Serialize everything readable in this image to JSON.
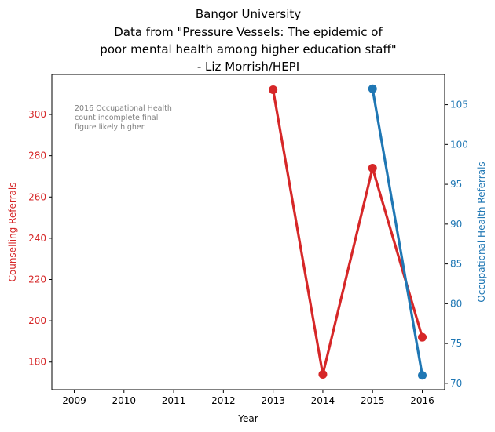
{
  "chart_data": {
    "type": "line",
    "title_lines": [
      "Bangor University",
      "Data from \"Pressure Vessels: The epidemic of",
      "poor mental health among higher education staff\"",
      "- Liz Morrish/HEPI"
    ],
    "xlabel": "Year",
    "x_ticks": [
      "2009",
      "2010",
      "2011",
      "2012",
      "2013",
      "2014",
      "2015",
      "2016"
    ],
    "xlim": [
      2008.55,
      2016.45
    ],
    "grid": false,
    "legend": "none",
    "annotation_lines": [
      "2016 Occupational Health",
      "count incomplete final",
      "figure likely higher"
    ],
    "series": [
      {
        "axis": "left",
        "color": "#d62728",
        "x": [
          2013,
          2014,
          2015,
          2016
        ],
        "values": [
          312,
          174,
          274,
          192
        ]
      },
      {
        "axis": "right",
        "color": "#1f77b4",
        "x": [
          2015,
          2016
        ],
        "values": [
          107,
          71
        ]
      }
    ],
    "y_left": {
      "label": "Counselling Referrals",
      "color": "#d62728",
      "lim": [
        166.6,
        319.4
      ],
      "ticks": [
        "180",
        "200",
        "220",
        "240",
        "260",
        "280",
        "300"
      ]
    },
    "y_right": {
      "label": "Occupational Health Referrals",
      "color": "#1f77b4",
      "lim": [
        69.2,
        108.8
      ],
      "ticks": [
        "70",
        "75",
        "80",
        "85",
        "90",
        "95",
        "100",
        "105"
      ]
    }
  }
}
